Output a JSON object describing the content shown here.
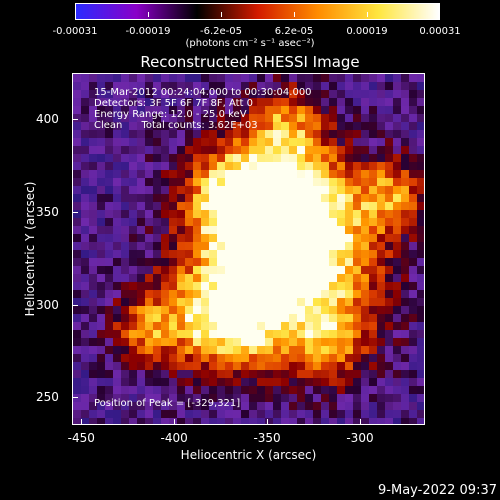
{
  "colorbar": {
    "tick_labels": [
      "-0.00031",
      "-0.00019",
      "-6.2e-05",
      "6.2e-05",
      "0.00019",
      "0.00031"
    ],
    "units": "(photons cm⁻² s⁻¹ asec⁻²)",
    "colors": [
      "#2a2bff",
      "#8a00c8",
      "#000000",
      "#d21a00",
      "#ff8c00",
      "#ffe640",
      "#ffffff"
    ]
  },
  "title": "Reconstructed RHESSI Image",
  "info_lines": [
    "15-Mar-2012 00:24:04.000 to 00:30:04.000",
    "Detectors: 3F 5F 6F 7F 8F, Att 0",
    "Energy Range: 12.0 - 25.0 keV",
    "Clean      Total counts: 3.62E+03"
  ],
  "peak_label": "Position of Peak = [-329,321]",
  "x_axis": {
    "label": "Heliocentric X (arcsec)",
    "ticks": [
      "-450",
      "-400",
      "-350",
      "-300"
    ],
    "range": [
      -455,
      -265
    ]
  },
  "y_axis": {
    "label": "Heliocentric Y (arcsec)",
    "ticks": [
      "400",
      "350",
      "300",
      "250"
    ],
    "range": [
      235,
      425
    ]
  },
  "footer": "9-May-2022 09:37"
}
